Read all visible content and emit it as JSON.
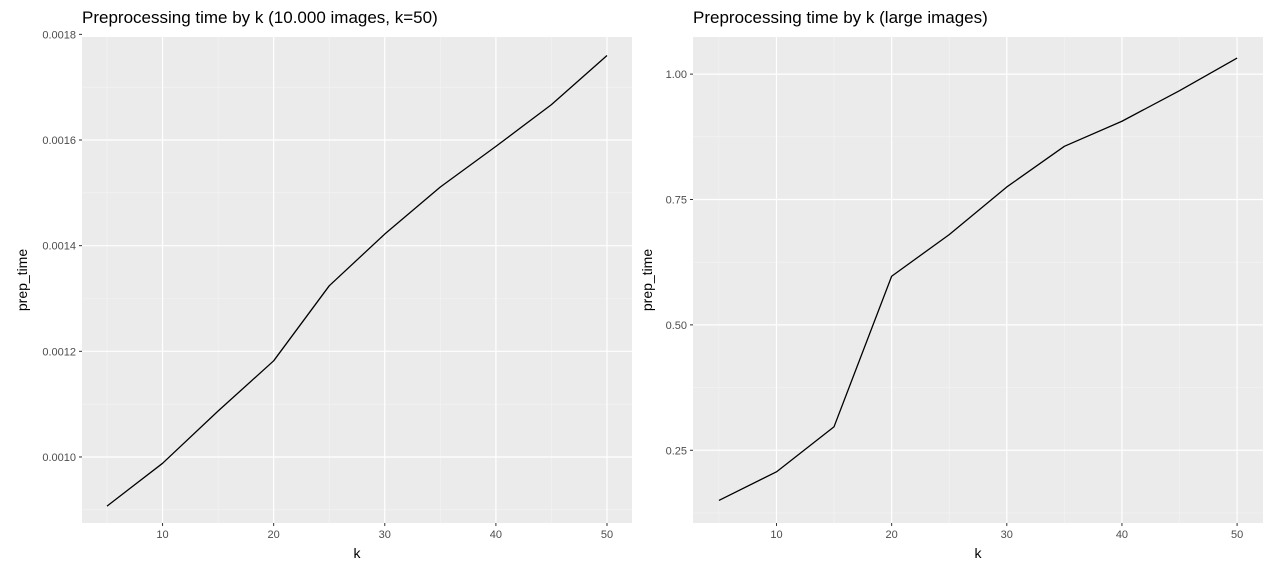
{
  "colors": {
    "panel_bg": "#ebebeb",
    "grid_major": "#ffffff",
    "grid_minor": "#f4f4f4",
    "line": "#000000",
    "tick": "#333333"
  },
  "chart_data": [
    {
      "type": "line",
      "title": "Preprocessing time by k (10.000 images, k=50)",
      "xlabel": "k",
      "ylabel": "prep_time",
      "xlim": [
        2.75,
        52.25
      ],
      "ylim": [
        0.000875,
        0.001795
      ],
      "x_ticks": [
        10,
        20,
        30,
        40,
        50
      ],
      "x_tick_labels": [
        "10",
        "20",
        "30",
        "40",
        "50"
      ],
      "y_ticks": [
        0.001,
        0.0012,
        0.0014,
        0.0016,
        0.0018
      ],
      "y_tick_labels": [
        "0.0010",
        "0.0012",
        "0.0014",
        "0.0016",
        "0.0018"
      ],
      "grid": true,
      "series": [
        {
          "x": [
            5,
            10,
            15,
            20,
            25,
            30,
            35,
            40,
            45,
            50
          ],
          "y": [
            0.000907,
            0.000988,
            0.001087,
            0.001182,
            0.001324,
            0.001422,
            0.001511,
            0.001588,
            0.001667,
            0.00176
          ]
        }
      ]
    },
    {
      "type": "line",
      "title": "Preprocessing time by k (large images)",
      "xlabel": "k",
      "ylabel": "prep_time",
      "xlim": [
        2.75,
        52.25
      ],
      "ylim": [
        0.105,
        1.074
      ],
      "x_ticks": [
        10,
        20,
        30,
        40,
        50
      ],
      "x_tick_labels": [
        "10",
        "20",
        "30",
        "40",
        "50"
      ],
      "y_ticks": [
        0.25,
        0.5,
        0.75,
        1.0
      ],
      "y_tick_labels": [
        "0.25",
        "0.50",
        "0.75",
        "1.00"
      ],
      "grid": true,
      "series": [
        {
          "x": [
            5,
            10,
            15,
            20,
            25,
            30,
            35,
            40,
            45,
            50
          ],
          "y": [
            0.15,
            0.207,
            0.297,
            0.597,
            0.68,
            0.775,
            0.856,
            0.906,
            0.967,
            1.032
          ]
        }
      ]
    }
  ]
}
